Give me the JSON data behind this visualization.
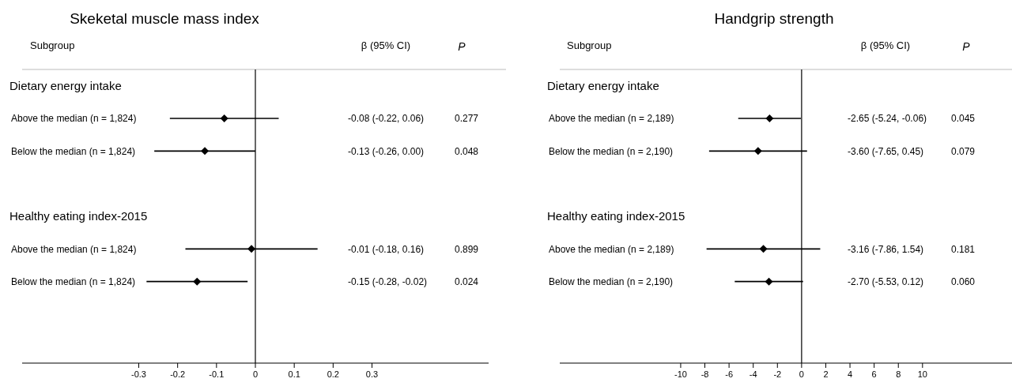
{
  "chart_data": [
    {
      "type": "scatter",
      "orientation": "horizontal",
      "title": "Skeketal muscle mass index",
      "ylabel": "Subgroup",
      "marker": "diamond",
      "color": "#000000",
      "categories": [
        "Dietary energy intake",
        "Above the median (n = 1,824)",
        "Below the median (n = 1,824)",
        null,
        "Healthy eating index-2015",
        "Above the median (n = 1,824)",
        "Below the median (n = 1,824)",
        null,
        null
      ],
      "values": [
        null,
        -0.08,
        -0.13,
        null,
        null,
        -0.01,
        -0.15,
        null,
        null
      ],
      "errors": [
        null,
        [
          -0.22,
          0.06
        ],
        [
          -0.26,
          0.0
        ],
        null,
        null,
        [
          -0.18,
          0.16
        ],
        [
          -0.28,
          -0.02
        ],
        null,
        null
      ],
      "annotations": [
        "β (95% CI)",
        "P",
        "-0.08 (-0.22, 0.06)",
        "0.277",
        "-0.13 (-0.26, 0.00)",
        "0.048",
        "-0.01 (-0.18, 0.16)",
        "0.899",
        "-0.15 (-0.28, -0.02)",
        "0.024"
      ],
      "xlim": [
        -0.6,
        0.6
      ],
      "xticks": [
        -0.3,
        -0.2,
        -0.1,
        0,
        0.1,
        0.2,
        0.3
      ],
      "ref_lines": [
        {
          "axis": "x",
          "value": 0
        }
      ]
    },
    {
      "type": "scatter",
      "orientation": "horizontal",
      "title": "Handgrip strength",
      "ylabel": "Subgroup",
      "marker": "diamond",
      "color": "#000000",
      "categories": [
        "Dietary energy intake",
        "Above the median (n = 2,189)",
        "Below the median (n = 2,190)",
        null,
        "Healthy eating index-2015",
        "Above the median (n = 2,189)",
        "Below the median (n = 2,190)",
        null,
        null
      ],
      "values": [
        null,
        -2.65,
        -3.6,
        null,
        null,
        -3.16,
        -2.7,
        null,
        null
      ],
      "errors": [
        null,
        [
          -5.24,
          -0.06
        ],
        [
          -7.65,
          0.45
        ],
        null,
        null,
        [
          -7.86,
          1.54
        ],
        [
          -5.53,
          0.12
        ],
        null,
        null
      ],
      "annotations": [
        "β (95% CI)",
        "P",
        "-2.65 (-5.24, -0.06)",
        "0.045",
        "-3.60 (-7.65, 0.45)",
        "0.079",
        "-3.16 (-7.86, 1.54)",
        "0.181",
        "-2.70 (-5.53, 0.12)",
        "0.060"
      ],
      "xlim": [
        -20,
        17.4
      ],
      "xticks": [
        -10,
        -8,
        -6,
        -4,
        -2,
        0,
        2,
        4,
        6,
        8,
        10
      ],
      "ref_lines": [
        {
          "axis": "x",
          "value": 0
        }
      ]
    }
  ]
}
